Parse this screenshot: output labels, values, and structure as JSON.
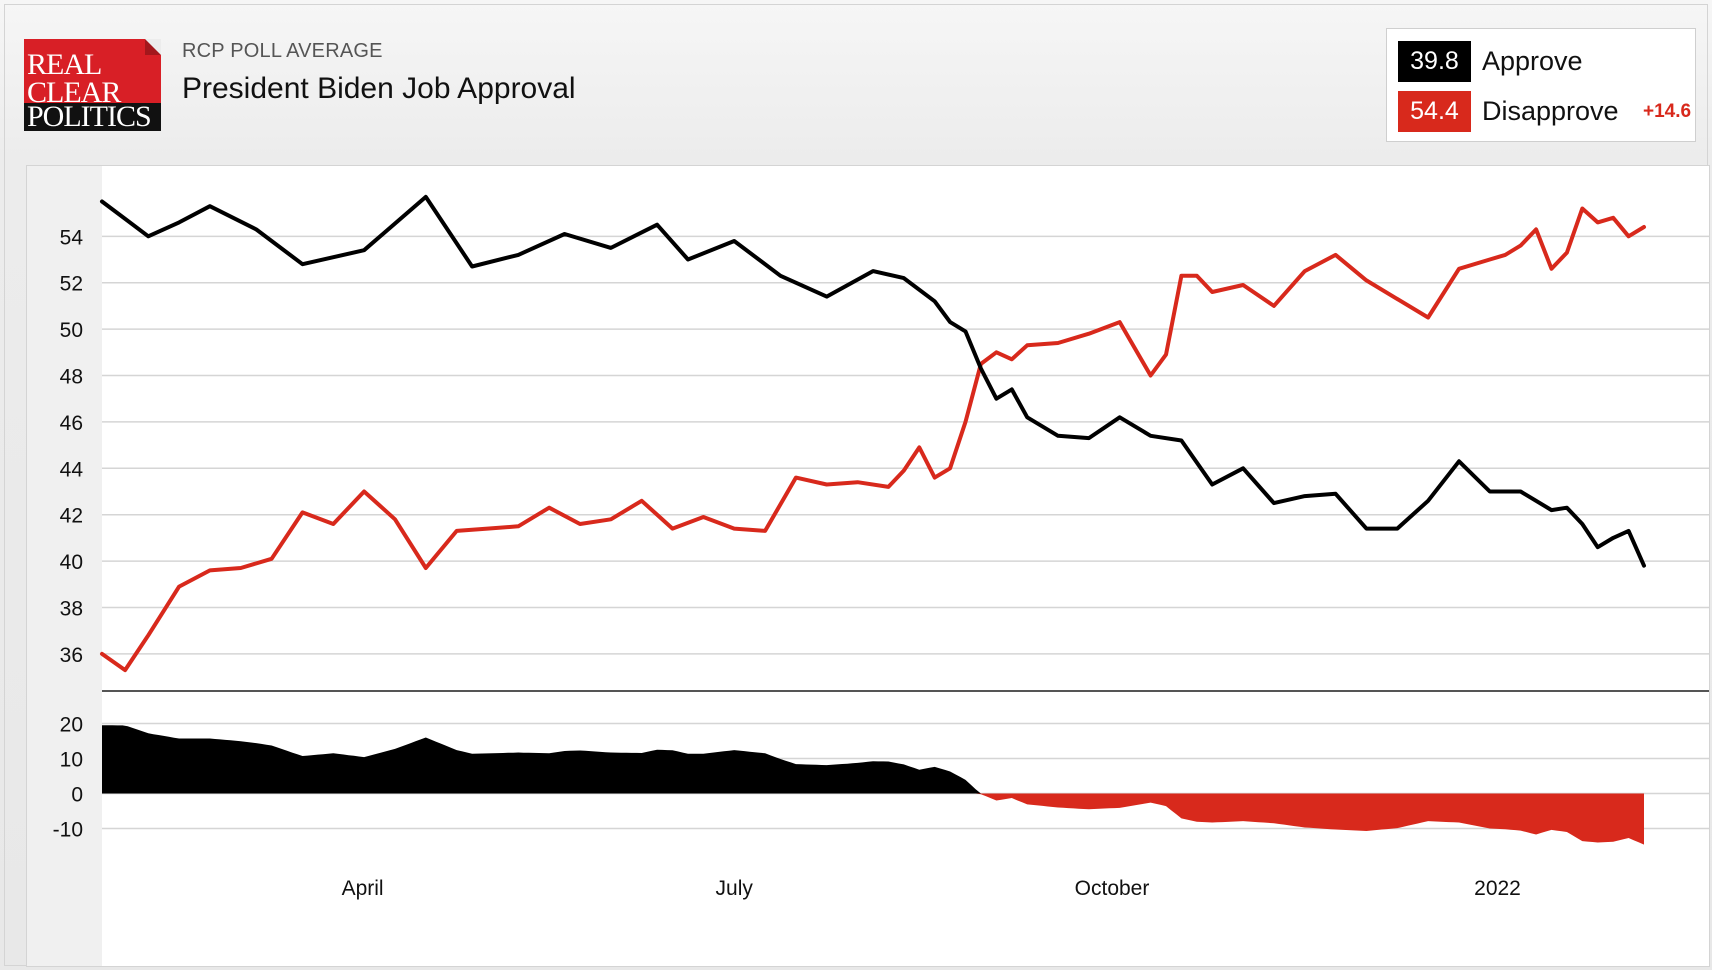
{
  "header": {
    "logo_lines": [
      "REAL",
      "CLEAR",
      "POLITICS"
    ],
    "subtitle": "RCP POLL AVERAGE",
    "title": "President Biden Job Approval"
  },
  "legend": {
    "approve": {
      "value": "39.8",
      "label": "Approve",
      "color": "#000000"
    },
    "disapprove": {
      "value": "54.4",
      "label": "Disapprove",
      "color": "#d8291c",
      "spread": "+14.6"
    }
  },
  "chart_data": {
    "type": "line",
    "title": "President Biden Job Approval",
    "x_ticks": [
      "April",
      "July",
      "October",
      "2022"
    ],
    "grid": true,
    "main": {
      "ylim": [
        34.4,
        56.6
      ],
      "y_ticks": [
        36,
        38,
        40,
        42,
        44,
        46,
        48,
        50,
        52,
        54
      ]
    },
    "spread_panel": {
      "type": "area",
      "ylim": [
        -15,
        25
      ],
      "y_ticks": [
        20,
        10,
        0,
        -10
      ],
      "positive_color": "#000000",
      "negative_color": "#d8291c"
    },
    "series": [
      {
        "name": "Approve",
        "color": "#000000",
        "x": [
          0,
          0.03,
          0.05,
          0.07,
          0.1,
          0.13,
          0.17,
          0.21,
          0.24,
          0.27,
          0.3,
          0.33,
          0.36,
          0.38,
          0.41,
          0.44,
          0.47,
          0.5,
          0.52,
          0.54,
          0.55,
          0.56,
          0.57,
          0.58,
          0.59,
          0.6,
          0.62,
          0.64,
          0.66,
          0.68,
          0.7,
          0.72,
          0.74,
          0.76,
          0.78,
          0.8,
          0.82,
          0.84,
          0.86,
          0.88,
          0.9,
          0.92,
          0.94,
          0.95,
          0.96,
          0.97,
          0.98,
          0.99,
          1
        ],
        "values": [
          55.5,
          54,
          54.6,
          55.3,
          54.3,
          52.8,
          53.4,
          55.7,
          52.7,
          53.2,
          54.1,
          53.5,
          54.5,
          53,
          53.8,
          52.3,
          51.4,
          52.5,
          52.2,
          51.2,
          50.3,
          49.9,
          48.3,
          47,
          47.4,
          46.2,
          45.4,
          45.3,
          46.2,
          45.4,
          45.2,
          43.3,
          44,
          42.5,
          42.8,
          42.9,
          41.4,
          41.4,
          42.6,
          44.3,
          43,
          43,
          42.2,
          42.3,
          41.6,
          40.6,
          41,
          41.3,
          39.8
        ]
      },
      {
        "name": "Disapprove",
        "color": "#d8291c",
        "x": [
          0,
          0.015,
          0.03,
          0.05,
          0.07,
          0.09,
          0.11,
          0.13,
          0.15,
          0.17,
          0.19,
          0.21,
          0.23,
          0.25,
          0.27,
          0.29,
          0.31,
          0.33,
          0.35,
          0.37,
          0.39,
          0.41,
          0.43,
          0.45,
          0.47,
          0.49,
          0.51,
          0.52,
          0.53,
          0.54,
          0.55,
          0.56,
          0.57,
          0.58,
          0.59,
          0.6,
          0.62,
          0.64,
          0.66,
          0.68,
          0.69,
          0.7,
          0.71,
          0.72,
          0.74,
          0.76,
          0.78,
          0.8,
          0.82,
          0.84,
          0.86,
          0.88,
          0.9,
          0.91,
          0.92,
          0.93,
          0.94,
          0.95,
          0.96,
          0.97,
          0.98,
          0.99,
          1
        ],
        "values": [
          36,
          35.3,
          36.8,
          38.9,
          39.6,
          39.7,
          40.1,
          42.1,
          41.6,
          43,
          41.8,
          39.7,
          41.3,
          41.4,
          41.5,
          42.3,
          41.6,
          41.8,
          42.6,
          41.4,
          41.9,
          41.4,
          41.3,
          43.6,
          43.3,
          43.4,
          43.2,
          43.9,
          44.9,
          43.6,
          44,
          46,
          48.5,
          49,
          48.7,
          49.3,
          49.4,
          49.8,
          50.3,
          48,
          48.9,
          52.3,
          52.3,
          51.6,
          51.9,
          51,
          52.5,
          53.2,
          52.1,
          51.3,
          50.5,
          52.6,
          53,
          53.2,
          53.6,
          54.3,
          52.6,
          53.3,
          55.2,
          54.6,
          54.8,
          54,
          54.4
        ]
      }
    ]
  }
}
